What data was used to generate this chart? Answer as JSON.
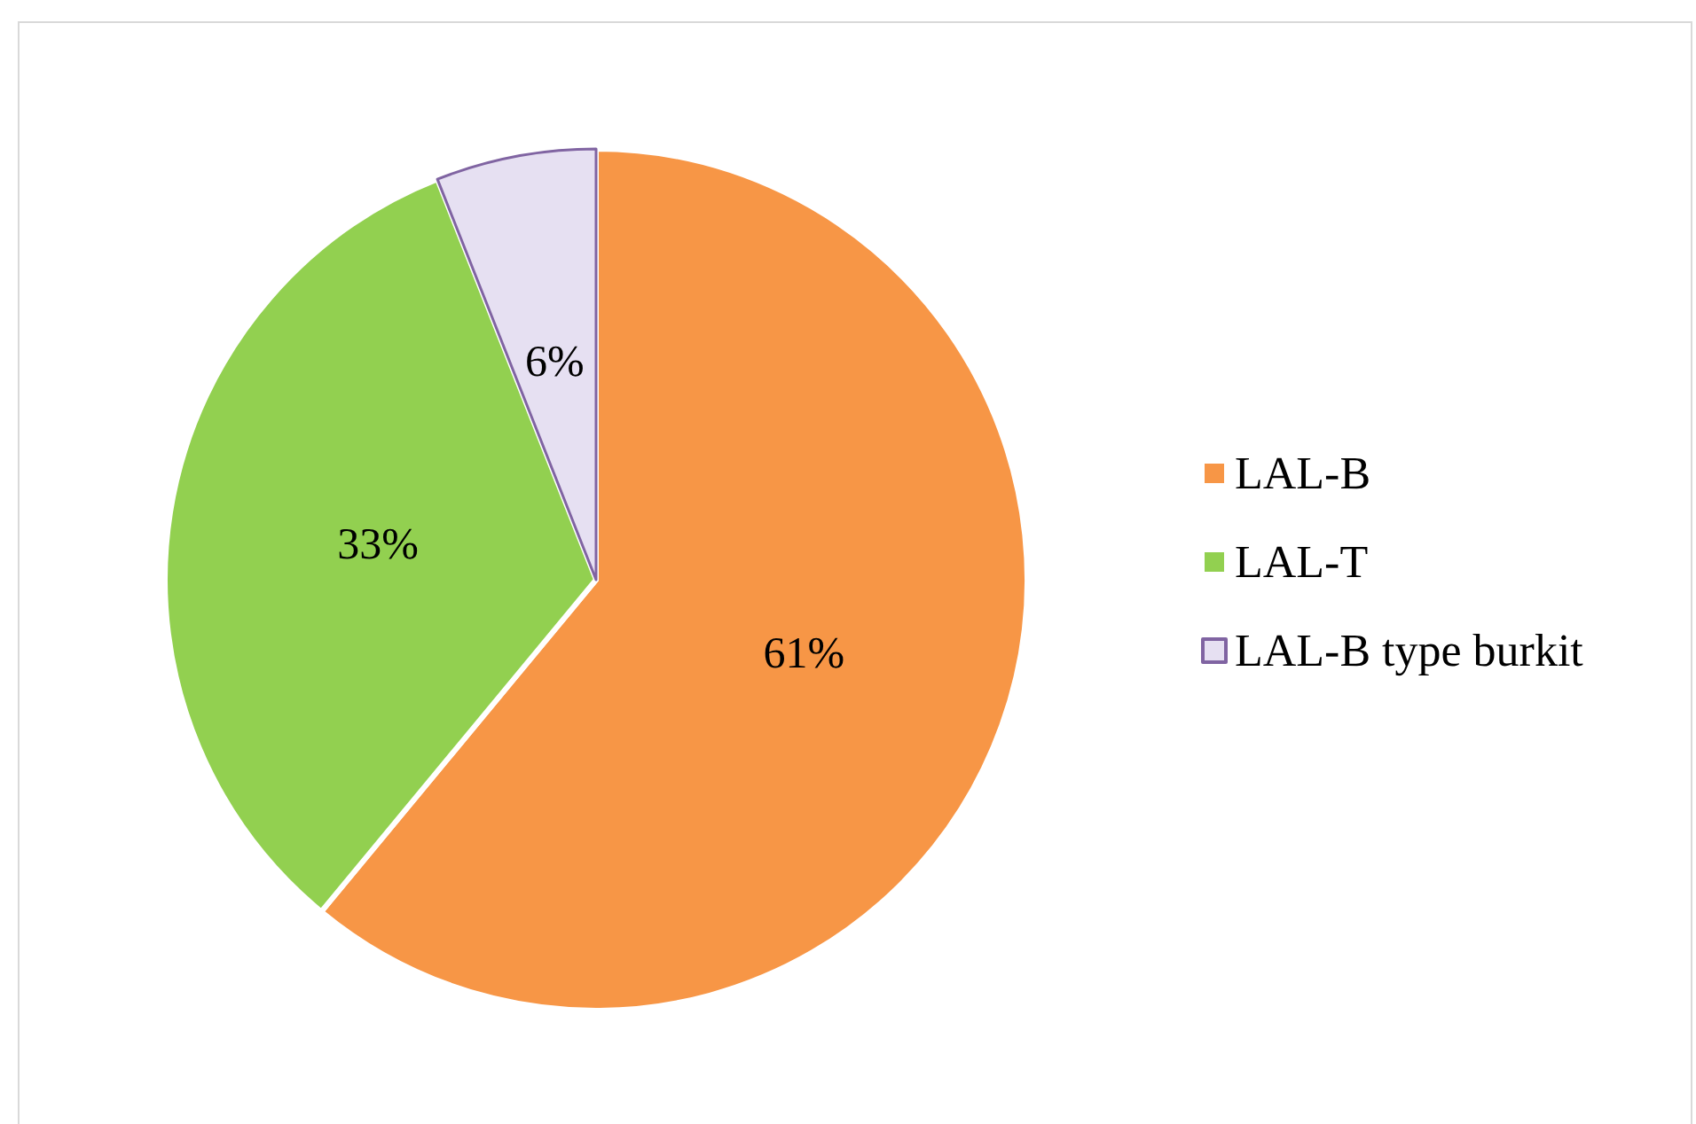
{
  "chart_data": {
    "type": "pie",
    "categories": [
      "LAL-B",
      "LAL-T",
      "LAL-B type burkit"
    ],
    "values": [
      61,
      33,
      6
    ],
    "value_labels": [
      "61%",
      "33%",
      "6%"
    ],
    "colors": [
      "#f79646",
      "#92d050",
      "#e6e0f2"
    ],
    "legend": "right"
  }
}
